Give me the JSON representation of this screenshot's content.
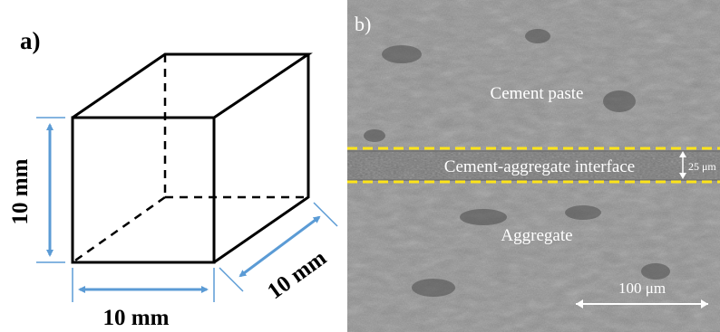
{
  "panel_a": {
    "label": "a)",
    "dims": {
      "height": "10 mm",
      "width": "10 mm",
      "depth": "10 mm"
    },
    "colors": {
      "edges": "#000000",
      "dimension_arrows": "#5b9bd5"
    }
  },
  "panel_b": {
    "label": "b)",
    "region_top": "Cement paste",
    "interface": "Cement-aggregate interface",
    "thickness": "25 μm",
    "region_bottom": "Aggregate",
    "scale_bar": "100 μm",
    "colors": {
      "interface_lines": "#ffe41a",
      "text": "#ffffff",
      "background": "#8d8d8d"
    }
  }
}
